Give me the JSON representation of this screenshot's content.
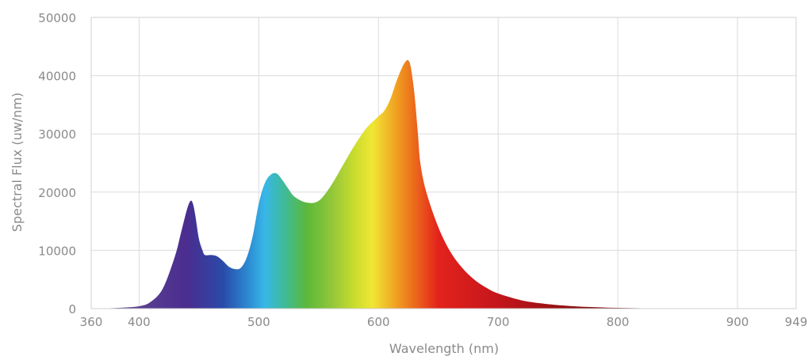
{
  "chart_data": {
    "type": "area",
    "title": "",
    "xlabel": "Wavelength (nm)",
    "ylabel": "Spectral Flux (uw/nm)",
    "xlim": [
      360,
      949
    ],
    "ylim": [
      0,
      50000
    ],
    "x_ticks": [
      360,
      400,
      500,
      600,
      700,
      800,
      900,
      949
    ],
    "x_tick_labels": [
      "360",
      "400",
      "500",
      "600",
      "700",
      "800",
      "900",
      "949"
    ],
    "y_ticks": [
      0,
      10000,
      20000,
      30000,
      40000,
      50000
    ],
    "y_tick_labels": [
      "0",
      "10000",
      "20000",
      "30000",
      "40000",
      "50000"
    ],
    "grid": true,
    "legend": "none",
    "fill": "visible-spectrum gradient",
    "series": [
      {
        "x": [
          360,
          380,
          400,
          410,
          420,
          430,
          435,
          440,
          443,
          445,
          447,
          450,
          453,
          455,
          460,
          465,
          470,
          475,
          480,
          485,
          490,
          495,
          500,
          505,
          510,
          515,
          520,
          525,
          530,
          540,
          550,
          560,
          570,
          580,
          590,
          600,
          605,
          610,
          615,
          620,
          623,
          625,
          627,
          630,
          633,
          635,
          640,
          650,
          660,
          670,
          680,
          690,
          700,
          720,
          740,
          760,
          780,
          800,
          820,
          840,
          850,
          949
        ],
        "y": [
          0,
          100,
          400,
          1200,
          3500,
          9000,
          13000,
          17000,
          18500,
          18000,
          16000,
          12000,
          10000,
          9200,
          9200,
          9000,
          8200,
          7200,
          6800,
          7000,
          8800,
          12500,
          18000,
          21500,
          23000,
          23200,
          22000,
          20500,
          19200,
          18200,
          18500,
          21000,
          24500,
          28000,
          31000,
          33000,
          34000,
          36000,
          39000,
          41500,
          42500,
          42600,
          41500,
          37000,
          30000,
          25000,
          20000,
          14000,
          9800,
          7000,
          5000,
          3600,
          2600,
          1400,
          800,
          450,
          250,
          130,
          60,
          20,
          0,
          0
        ]
      }
    ],
    "colors": {
      "gradient_stops": [
        {
          "wavelength": 400,
          "color": "#5b3f91"
        },
        {
          "wavelength": 440,
          "color": "#4a2d8f"
        },
        {
          "wavelength": 470,
          "color": "#2a4aa8"
        },
        {
          "wavelength": 490,
          "color": "#2b86d0"
        },
        {
          "wavelength": 505,
          "color": "#38b7e8"
        },
        {
          "wavelength": 520,
          "color": "#3dbba0"
        },
        {
          "wavelength": 540,
          "color": "#5bb83a"
        },
        {
          "wavelength": 560,
          "color": "#8fc63a"
        },
        {
          "wavelength": 580,
          "color": "#c9dc2e"
        },
        {
          "wavelength": 595,
          "color": "#f1e634"
        },
        {
          "wavelength": 615,
          "color": "#f0a021"
        },
        {
          "wavelength": 630,
          "color": "#ec6a1c"
        },
        {
          "wavelength": 650,
          "color": "#e3221c"
        },
        {
          "wavelength": 700,
          "color": "#c4161c"
        },
        {
          "wavelength": 760,
          "color": "#8e1010"
        },
        {
          "wavelength": 850,
          "color": "#6b0d0d"
        }
      ]
    }
  }
}
